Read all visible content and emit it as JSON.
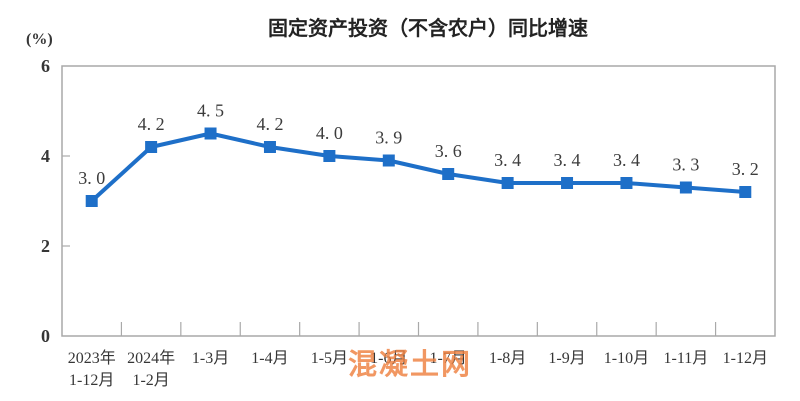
{
  "watermark": "混凝土网",
  "colors": {
    "line": "#1e6fc8",
    "axis": "#a9a9a9",
    "text": "#3c3c3c",
    "title": "#232323",
    "watermark": "#ef8140"
  },
  "chart_data": {
    "type": "line",
    "title": "固定资产投资（不含农户）同比增速",
    "ylabel": "(%)",
    "categories": [
      "2023年\n1-12月",
      "2024年\n1-2月",
      "1-3月",
      "1-4月",
      "1-5月",
      "1-6月",
      "1-7月",
      "1-8月",
      "1-9月",
      "1-10月",
      "1-11月",
      "1-12月"
    ],
    "values": [
      3.0,
      4.2,
      4.5,
      4.2,
      4.0,
      3.9,
      3.6,
      3.4,
      3.4,
      3.4,
      3.3,
      3.2
    ],
    "point_labels": [
      "3. 0",
      "4. 2",
      "4. 5",
      "4. 2",
      "4. 0",
      "3. 9",
      "3. 6",
      "3. 4",
      "3. 4",
      "3. 4",
      "3. 3",
      "3. 2"
    ],
    "ylim": [
      0,
      6
    ],
    "yticks": [
      0,
      2,
      4,
      6
    ],
    "grid": false,
    "legend": "none",
    "marker": "square",
    "series_name": "固定资产投资（不含农户）同比增速"
  }
}
